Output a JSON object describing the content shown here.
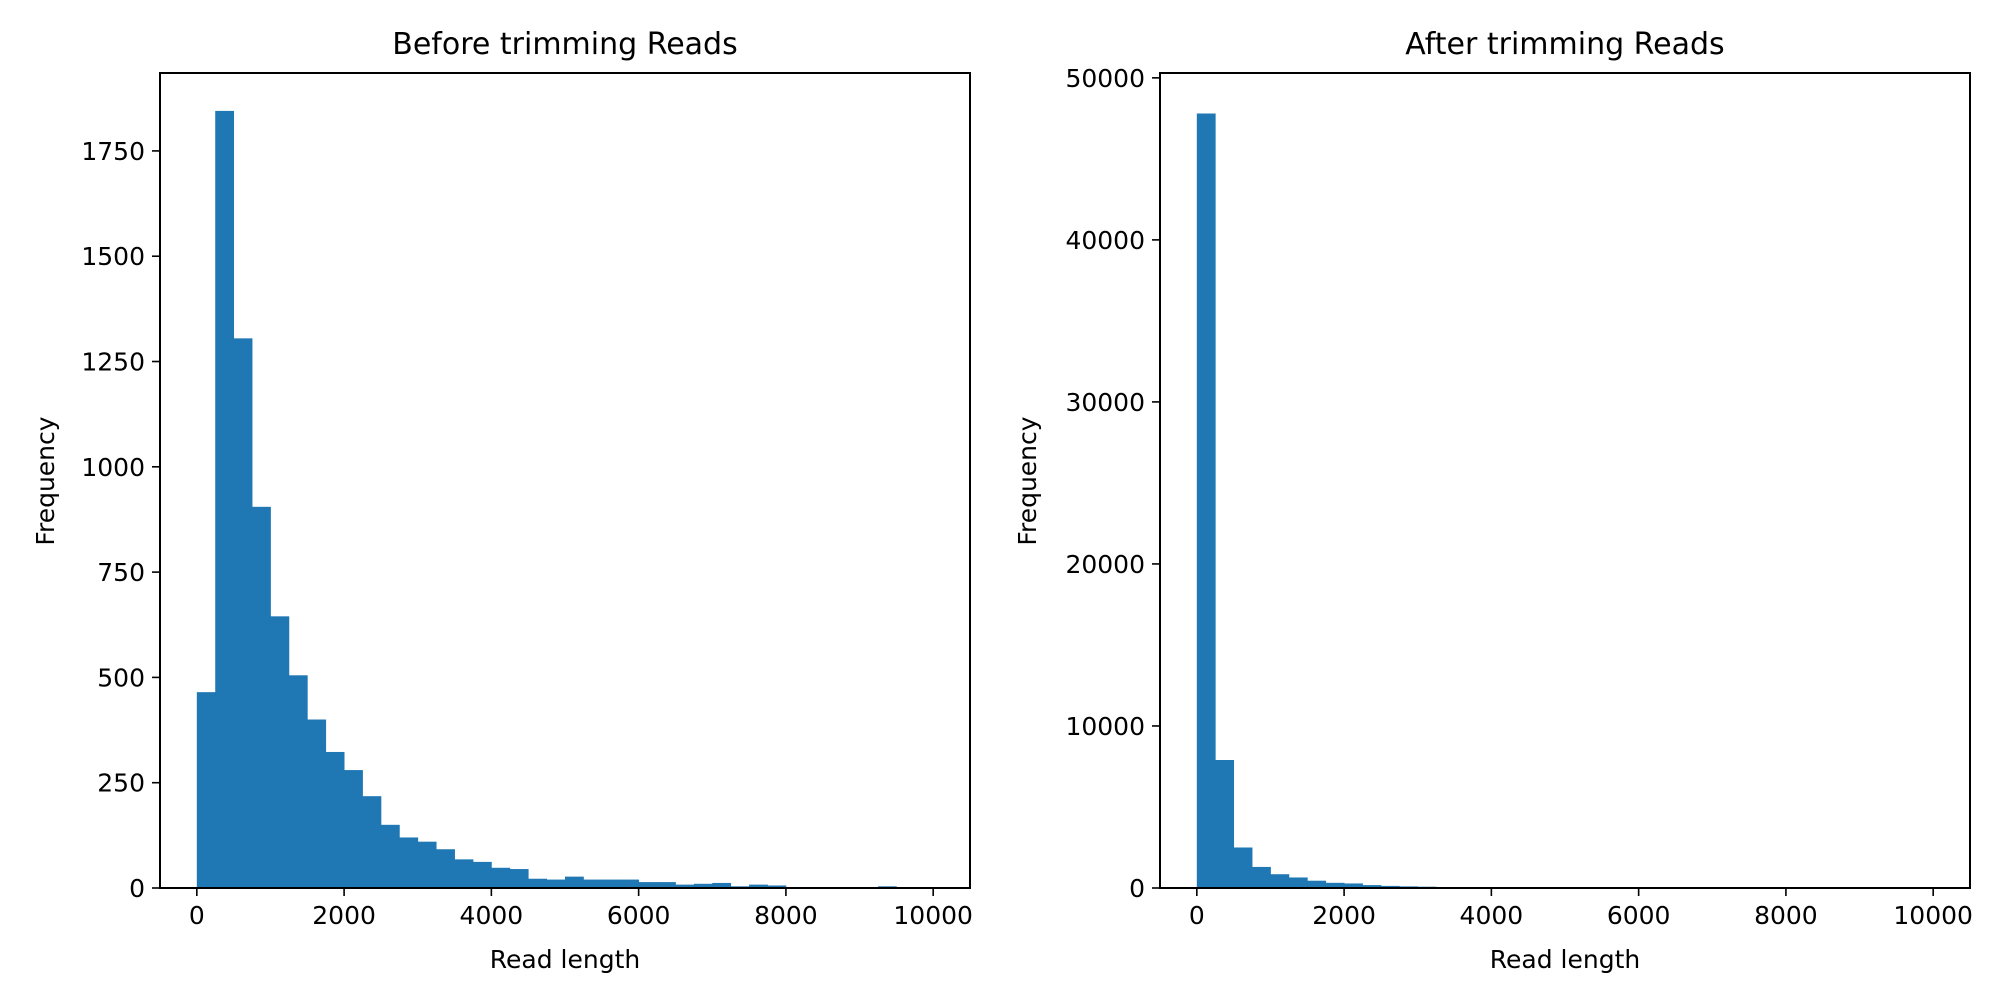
{
  "chart_data": [
    {
      "type": "bar",
      "title": "Before trimming Reads",
      "xlabel": "Read length",
      "ylabel": "Frequency",
      "xlim": [
        -500,
        10500
      ],
      "ylim": [
        0,
        1935
      ],
      "xticks": [
        0,
        2000,
        4000,
        6000,
        8000,
        10000
      ],
      "xtick_labels": [
        "0",
        "2000",
        "4000",
        "6000",
        "8000",
        "10000"
      ],
      "yticks": [
        0,
        250,
        500,
        750,
        1000,
        1250,
        1500,
        1750
      ],
      "ytick_labels": [
        "0",
        "250",
        "500",
        "750",
        "1000",
        "1250",
        "1500",
        "1750"
      ],
      "bin_start": 0,
      "bin_width": 250,
      "values": [
        465,
        1845,
        1305,
        905,
        645,
        505,
        400,
        323,
        280,
        218,
        150,
        120,
        110,
        92,
        68,
        62,
        48,
        45,
        22,
        20,
        27,
        20,
        20,
        20,
        14,
        14,
        8,
        10,
        12,
        4,
        8,
        6,
        0,
        0,
        0,
        0,
        0,
        4,
        0,
        0
      ],
      "color": "#1f77b4"
    },
    {
      "type": "bar",
      "title": "After trimming Reads",
      "xlabel": "Read length",
      "ylabel": "Frequency",
      "xlim": [
        -500,
        10500
      ],
      "ylim": [
        0,
        50300
      ],
      "xticks": [
        0,
        2000,
        4000,
        6000,
        8000,
        10000
      ],
      "xtick_labels": [
        "0",
        "2000",
        "4000",
        "6000",
        "8000",
        "10000"
      ],
      "yticks": [
        0,
        10000,
        20000,
        30000,
        40000,
        50000
      ],
      "ytick_labels": [
        "0",
        "10000",
        "20000",
        "30000",
        "40000",
        "50000"
      ],
      "bin_start": 0,
      "bin_width": 250,
      "values": [
        47800,
        7900,
        2500,
        1300,
        850,
        650,
        450,
        320,
        280,
        180,
        130,
        100,
        80,
        60,
        40,
        30,
        25,
        20,
        15,
        12,
        10,
        8,
        7,
        6,
        5,
        4,
        3,
        3,
        2,
        2,
        2,
        1,
        1,
        1,
        1,
        1,
        1,
        1,
        1,
        1
      ],
      "color": "#1f77b4"
    }
  ]
}
